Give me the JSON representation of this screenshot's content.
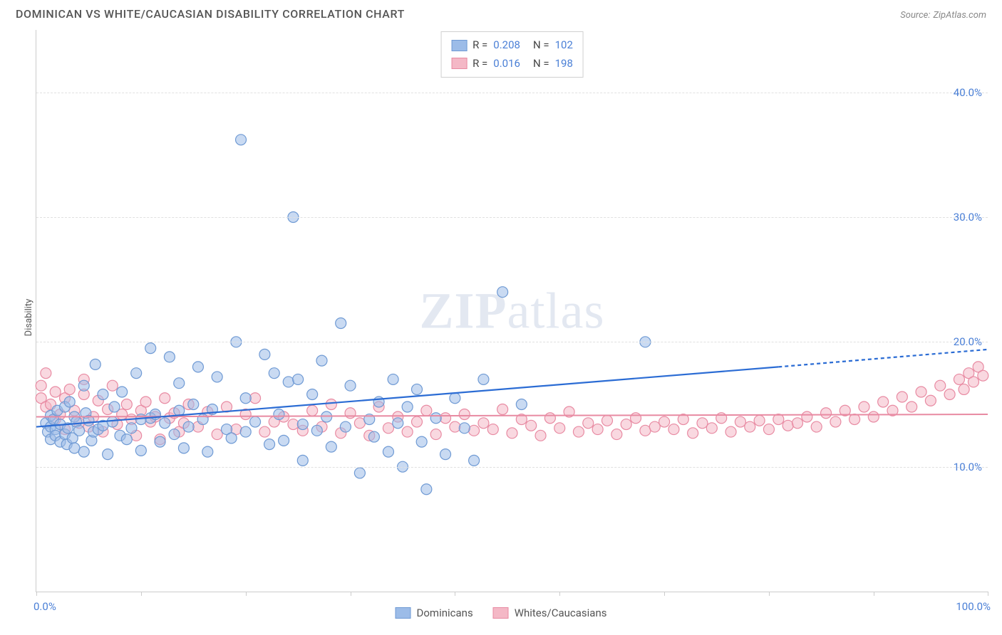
{
  "title": "DOMINICAN VS WHITE/CAUCASIAN DISABILITY CORRELATION CHART",
  "source_label": "Source:",
  "source_name": "ZipAtlas.com",
  "ylabel": "Disability",
  "watermark_zip": "ZIP",
  "watermark_atlas": "atlas",
  "chart": {
    "type": "scatter",
    "background_color": "#ffffff",
    "grid_color": "#e0e0e0",
    "grid_dash": "4,4",
    "axis_color": "#cccccc",
    "xlim": [
      0,
      100
    ],
    "ylim": [
      0,
      45
    ],
    "yticks": [
      10,
      20,
      30,
      40
    ],
    "ytick_labels": [
      "10.0%",
      "20.0%",
      "30.0%",
      "40.0%"
    ],
    "xtick_positions": [
      0,
      11,
      22,
      33,
      44,
      55,
      66,
      77,
      88,
      100
    ],
    "xaxis_end_labels": {
      "left": "0.0%",
      "right": "100.0%"
    },
    "ytick_label_color": "#4a7fd6",
    "xtick_label_color": "#4a7fd6",
    "label_fontsize": 15,
    "title_fontsize": 16,
    "title_color": "#555555",
    "marker_radius": 7.5,
    "marker_opacity": 0.55,
    "series": [
      {
        "name": "Dominicans",
        "fill": "#9cbce8",
        "stroke": "#6f9ad4",
        "points": [
          [
            1,
            13.5
          ],
          [
            1.2,
            12.8
          ],
          [
            1.5,
            13.2
          ],
          [
            1.5,
            14.1
          ],
          [
            1.5,
            12.2
          ],
          [
            1.8,
            13.8
          ],
          [
            2,
            13.0
          ],
          [
            2,
            12.5
          ],
          [
            2.2,
            14.5
          ],
          [
            2.5,
            12.0
          ],
          [
            2.5,
            13.4
          ],
          [
            3,
            14.8
          ],
          [
            3,
            12.6
          ],
          [
            3.2,
            11.8
          ],
          [
            3.3,
            13.1
          ],
          [
            3.5,
            15.2
          ],
          [
            3.8,
            12.3
          ],
          [
            4,
            14.0
          ],
          [
            4,
            11.5
          ],
          [
            4.2,
            13.6
          ],
          [
            4.5,
            12.9
          ],
          [
            5,
            16.5
          ],
          [
            5,
            11.2
          ],
          [
            5.2,
            14.3
          ],
          [
            5.5,
            13.7
          ],
          [
            5.8,
            12.1
          ],
          [
            6,
            12.8
          ],
          [
            6.2,
            18.2
          ],
          [
            6.5,
            13.0
          ],
          [
            7,
            13.3
          ],
          [
            7,
            15.8
          ],
          [
            7.5,
            11.0
          ],
          [
            8,
            13.6
          ],
          [
            8.2,
            14.8
          ],
          [
            8.8,
            12.5
          ],
          [
            9,
            16.0
          ],
          [
            9.5,
            12.2
          ],
          [
            10,
            13.1
          ],
          [
            10.5,
            17.5
          ],
          [
            11,
            13.8
          ],
          [
            11,
            11.3
          ],
          [
            12,
            13.9
          ],
          [
            12,
            19.5
          ],
          [
            12.5,
            14.2
          ],
          [
            13,
            12.0
          ],
          [
            13.5,
            13.5
          ],
          [
            14,
            18.8
          ],
          [
            14.5,
            12.6
          ],
          [
            15,
            14.5
          ],
          [
            15,
            16.7
          ],
          [
            15.5,
            11.5
          ],
          [
            16,
            13.2
          ],
          [
            16.5,
            15.0
          ],
          [
            17,
            18.0
          ],
          [
            17.5,
            13.8
          ],
          [
            18,
            11.2
          ],
          [
            18.5,
            14.6
          ],
          [
            19,
            17.2
          ],
          [
            20,
            13.0
          ],
          [
            20.5,
            12.3
          ],
          [
            21,
            20.0
          ],
          [
            21.5,
            36.2
          ],
          [
            22,
            12.8
          ],
          [
            22,
            15.5
          ],
          [
            23,
            13.6
          ],
          [
            24,
            19.0
          ],
          [
            24.5,
            11.8
          ],
          [
            25,
            17.5
          ],
          [
            25.5,
            14.2
          ],
          [
            26,
            12.1
          ],
          [
            26.5,
            16.8
          ],
          [
            27,
            30.0
          ],
          [
            27.5,
            17.0
          ],
          [
            28,
            13.4
          ],
          [
            28,
            10.5
          ],
          [
            29,
            15.8
          ],
          [
            29.5,
            12.9
          ],
          [
            30,
            18.5
          ],
          [
            30.5,
            14.0
          ],
          [
            31,
            11.6
          ],
          [
            32,
            21.5
          ],
          [
            32.5,
            13.2
          ],
          [
            33,
            16.5
          ],
          [
            34,
            9.5
          ],
          [
            35,
            13.8
          ],
          [
            35.5,
            12.4
          ],
          [
            36,
            15.2
          ],
          [
            37,
            11.2
          ],
          [
            37.5,
            17.0
          ],
          [
            38,
            13.5
          ],
          [
            38.5,
            10.0
          ],
          [
            39,
            14.8
          ],
          [
            40,
            16.2
          ],
          [
            40.5,
            12.0
          ],
          [
            41,
            8.2
          ],
          [
            42,
            13.9
          ],
          [
            43,
            11.0
          ],
          [
            44,
            15.5
          ],
          [
            45,
            13.1
          ],
          [
            46,
            10.5
          ],
          [
            47,
            17.0
          ],
          [
            49,
            24.0
          ],
          [
            51,
            15.0
          ],
          [
            64,
            20.0
          ]
        ],
        "trend": {
          "x1": 0,
          "y1": 13.2,
          "x2": 78,
          "y2": 18.0,
          "x2_dashed": 100,
          "y2_dashed": 19.4,
          "color": "#2b6cd4",
          "width": 2.2,
          "dash": "5,4"
        }
      },
      {
        "name": "Whites/Caucasians",
        "fill": "#f4b8c6",
        "stroke": "#e88aa2",
        "points": [
          [
            0.5,
            16.5
          ],
          [
            0.5,
            15.5
          ],
          [
            1,
            14.8
          ],
          [
            1,
            17.5
          ],
          [
            1.5,
            15.0
          ],
          [
            2,
            16.0
          ],
          [
            2,
            13.8
          ],
          [
            2.5,
            14.2
          ],
          [
            3,
            15.5
          ],
          [
            3,
            13.0
          ],
          [
            3.5,
            16.2
          ],
          [
            4,
            14.5
          ],
          [
            4.5,
            13.5
          ],
          [
            5,
            15.8
          ],
          [
            5,
            17.0
          ],
          [
            5.5,
            13.2
          ],
          [
            6,
            14.0
          ],
          [
            6.5,
            15.3
          ],
          [
            7,
            12.8
          ],
          [
            7.5,
            14.6
          ],
          [
            8,
            16.5
          ],
          [
            8.5,
            13.4
          ],
          [
            9,
            14.2
          ],
          [
            9.5,
            15.0
          ],
          [
            10,
            13.8
          ],
          [
            10.5,
            12.5
          ],
          [
            11,
            14.5
          ],
          [
            11.5,
            15.2
          ],
          [
            12,
            13.6
          ],
          [
            12.5,
            14.0
          ],
          [
            13,
            12.2
          ],
          [
            13.5,
            15.5
          ],
          [
            14,
            13.9
          ],
          [
            14.5,
            14.3
          ],
          [
            15,
            12.8
          ],
          [
            15.5,
            13.5
          ],
          [
            16,
            15.0
          ],
          [
            17,
            13.2
          ],
          [
            18,
            14.4
          ],
          [
            19,
            12.6
          ],
          [
            20,
            14.8
          ],
          [
            21,
            13.0
          ],
          [
            22,
            14.2
          ],
          [
            23,
            15.5
          ],
          [
            24,
            12.8
          ],
          [
            25,
            13.6
          ],
          [
            26,
            14.0
          ],
          [
            27,
            13.4
          ],
          [
            28,
            12.9
          ],
          [
            29,
            14.5
          ],
          [
            30,
            13.2
          ],
          [
            31,
            15.0
          ],
          [
            32,
            12.7
          ],
          [
            33,
            14.3
          ],
          [
            34,
            13.5
          ],
          [
            35,
            12.5
          ],
          [
            36,
            14.8
          ],
          [
            37,
            13.1
          ],
          [
            38,
            14.0
          ],
          [
            39,
            12.8
          ],
          [
            40,
            13.6
          ],
          [
            41,
            14.5
          ],
          [
            42,
            12.6
          ],
          [
            43,
            13.9
          ],
          [
            44,
            13.2
          ],
          [
            45,
            14.2
          ],
          [
            46,
            12.9
          ],
          [
            47,
            13.5
          ],
          [
            48,
            13.0
          ],
          [
            49,
            14.6
          ],
          [
            50,
            12.7
          ],
          [
            51,
            13.8
          ],
          [
            52,
            13.3
          ],
          [
            53,
            12.5
          ],
          [
            54,
            13.9
          ],
          [
            55,
            13.1
          ],
          [
            56,
            14.4
          ],
          [
            57,
            12.8
          ],
          [
            58,
            13.5
          ],
          [
            59,
            13.0
          ],
          [
            60,
            13.7
          ],
          [
            61,
            12.6
          ],
          [
            62,
            13.4
          ],
          [
            63,
            13.9
          ],
          [
            64,
            12.9
          ],
          [
            65,
            13.2
          ],
          [
            66,
            13.6
          ],
          [
            67,
            13.0
          ],
          [
            68,
            13.8
          ],
          [
            69,
            12.7
          ],
          [
            70,
            13.5
          ],
          [
            71,
            13.1
          ],
          [
            72,
            13.9
          ],
          [
            73,
            12.8
          ],
          [
            74,
            13.6
          ],
          [
            75,
            13.2
          ],
          [
            76,
            13.7
          ],
          [
            77,
            13.0
          ],
          [
            78,
            13.8
          ],
          [
            79,
            13.3
          ],
          [
            80,
            13.5
          ],
          [
            81,
            14.0
          ],
          [
            82,
            13.2
          ],
          [
            83,
            14.3
          ],
          [
            84,
            13.6
          ],
          [
            85,
            14.5
          ],
          [
            86,
            13.8
          ],
          [
            87,
            14.8
          ],
          [
            88,
            14.0
          ],
          [
            89,
            15.2
          ],
          [
            90,
            14.5
          ],
          [
            91,
            15.6
          ],
          [
            92,
            14.8
          ],
          [
            93,
            16.0
          ],
          [
            94,
            15.3
          ],
          [
            95,
            16.5
          ],
          [
            96,
            15.8
          ],
          [
            97,
            17.0
          ],
          [
            97.5,
            16.2
          ],
          [
            98,
            17.5
          ],
          [
            98.5,
            16.8
          ],
          [
            99,
            18.0
          ],
          [
            99.5,
            17.3
          ]
        ],
        "trend": {
          "x1": 0,
          "y1": 14.0,
          "x2": 100,
          "y2": 14.2,
          "color": "#e88aa2",
          "width": 2,
          "dash": null
        }
      }
    ]
  },
  "legend_top": [
    {
      "fill": "#9cbce8",
      "stroke": "#6f9ad4",
      "r_label": "R =",
      "r_val": "0.208",
      "n_label": "N =",
      "n_val": "102"
    },
    {
      "fill": "#f4b8c6",
      "stroke": "#e88aa2",
      "r_label": "R =",
      "r_val": "0.016",
      "n_label": "N =",
      "n_val": "198"
    }
  ],
  "legend_bottom": [
    {
      "fill": "#9cbce8",
      "stroke": "#6f9ad4",
      "label": "Dominicans"
    },
    {
      "fill": "#f4b8c6",
      "stroke": "#e88aa2",
      "label": "Whites/Caucasians"
    }
  ]
}
